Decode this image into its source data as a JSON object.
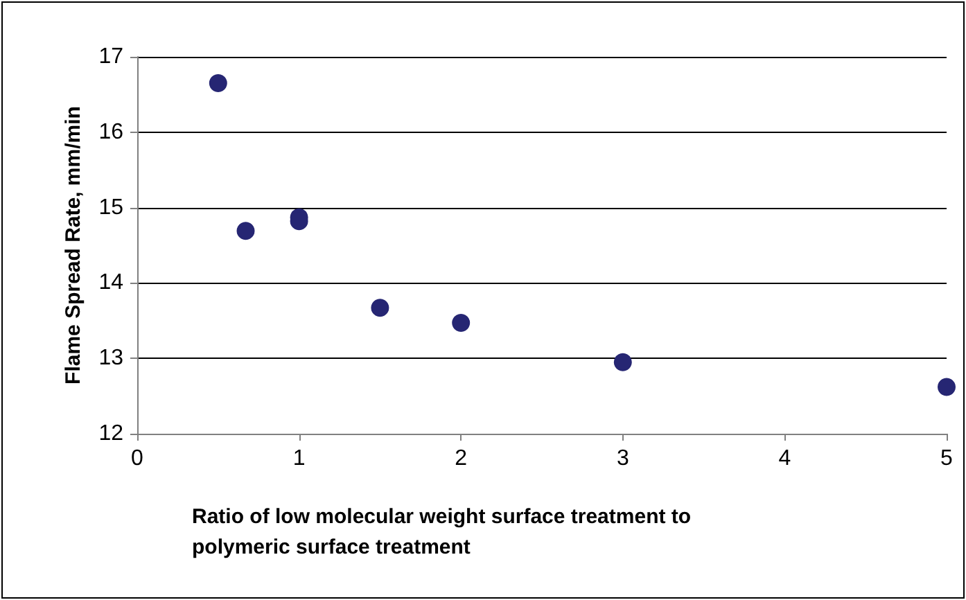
{
  "chart_data": {
    "type": "scatter",
    "xlabel": "Ratio of low molecular weight surface treatment to polymeric surface treatment",
    "ylabel": "Flame Spread Rate, mm/min",
    "x": [
      0.5,
      0.67,
      1,
      1,
      1.5,
      2,
      3,
      5
    ],
    "values": [
      16.65,
      14.69,
      14.87,
      14.82,
      13.67,
      13.47,
      12.95,
      12.62
    ],
    "color": "#262673",
    "marker": "circle",
    "xlim": [
      0,
      5
    ],
    "xticks": [
      0,
      1,
      2,
      3,
      4,
      5
    ],
    "ylim": [
      12,
      17
    ],
    "yticks": [
      12,
      13,
      14,
      15,
      16,
      17
    ],
    "grid": "y"
  }
}
